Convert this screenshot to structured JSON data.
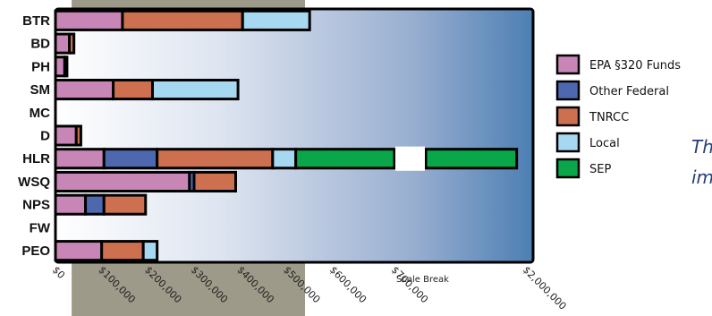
{
  "chart_data": {
    "type": "bar",
    "orientation": "horizontal",
    "stacked": true,
    "categories": [
      "BTR",
      "BD",
      "PH",
      "SM",
      "MC",
      "D",
      "HLR",
      "WSQ",
      "NPS",
      "FW",
      "PEO"
    ],
    "series": [
      {
        "name": "EPA §320 Funds",
        "color": "#c886b6",
        "values": [
          145000,
          30000,
          20000,
          125000,
          0,
          45000,
          105000,
          290000,
          65000,
          0,
          100000
        ]
      },
      {
        "name": "Other Federal",
        "color": "#4e68b0",
        "values": [
          0,
          0,
          0,
          0,
          0,
          0,
          115000,
          10000,
          40000,
          0,
          0
        ]
      },
      {
        "name": "TNRCC",
        "color": "#cd7050",
        "values": [
          260000,
          10000,
          5000,
          85000,
          0,
          10000,
          250000,
          90000,
          90000,
          0,
          90000
        ]
      },
      {
        "name": "Local",
        "color": "#a7d8f2",
        "values": [
          145000,
          0,
          0,
          185000,
          0,
          0,
          50000,
          0,
          0,
          0,
          30000
        ]
      },
      {
        "name": "SEP",
        "color": "#09a64a",
        "values": [
          0,
          0,
          0,
          0,
          0,
          0,
          1360000,
          0,
          0,
          0,
          0
        ]
      }
    ],
    "x_tick_labels": [
      "$0",
      "$100,000",
      "$200,000",
      "$300,000",
      "$400,000",
      "$500,000",
      "$600,000",
      "$700,000",
      "$2,000,000"
    ],
    "xlim": [
      0,
      2000000
    ],
    "scale_break": {
      "label": "Scale Break",
      "from": 700000,
      "to": 2000000
    },
    "highlight_band": {
      "from": 35000,
      "to": 540000,
      "color": "#9d9a89"
    },
    "legend_position": "right",
    "grid": false
  },
  "side_text": [
    "Th",
    "im"
  ]
}
